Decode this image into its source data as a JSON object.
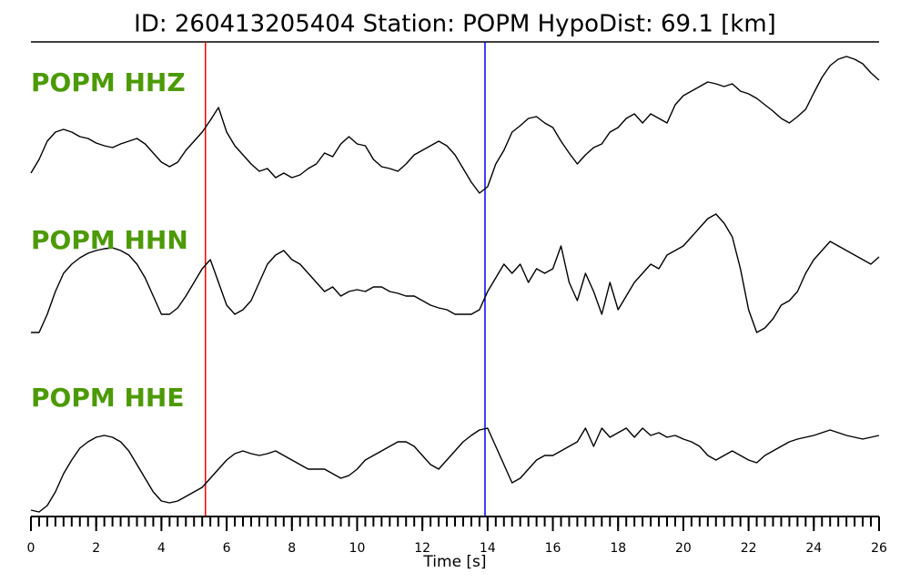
{
  "chart_data": {
    "type": "line",
    "title": "ID: 260413205404   Station: POPM   HypoDist:    69.1 [km]",
    "x_label": "Time [s]",
    "xlim": [
      0,
      26
    ],
    "xticks": [
      0,
      2,
      4,
      6,
      8,
      10,
      12,
      14,
      16,
      18,
      20,
      22,
      24,
      26
    ],
    "xminorticks": [
      0,
      0.25,
      0.5,
      0.75,
      1,
      1.25,
      1.5,
      1.75,
      2,
      2.25,
      2.5,
      2.75,
      3,
      3.25,
      3.5,
      3.75,
      4,
      4.25,
      4.5,
      4.75,
      5,
      5.25,
      5.5,
      5.75,
      6,
      6.25,
      6.5,
      6.75,
      7,
      7.25,
      7.5,
      7.75,
      8,
      8.25,
      8.5,
      8.75,
      9,
      9.25,
      9.5,
      9.75,
      10,
      10.25,
      10.5,
      10.75,
      11,
      11.25,
      11.5,
      11.75,
      12,
      12.25,
      12.5,
      12.75,
      13,
      13.25,
      13.5,
      13.75,
      14,
      14.25,
      14.5,
      14.75,
      15,
      15.25,
      15.5,
      15.75,
      16,
      16.25,
      16.5,
      16.75,
      17,
      17.25,
      17.5,
      17.75,
      18,
      18.25,
      18.5,
      18.75,
      19,
      19.25,
      19.5,
      19.75,
      20,
      20.25,
      20.5,
      20.75,
      21,
      21.25,
      21.5,
      21.75,
      22,
      22.25,
      22.5,
      22.75,
      23,
      23.25,
      23.5,
      23.75,
      24,
      24.25,
      24.5,
      24.75,
      25,
      25.25,
      25.5,
      25.75,
      26
    ],
    "ylim": [
      -100,
      100
    ],
    "label_color": "#4c9a06",
    "x": [
      0,
      0.25,
      0.5,
      0.75,
      1,
      1.25,
      1.5,
      1.75,
      2,
      2.25,
      2.5,
      2.75,
      3,
      3.25,
      3.5,
      3.75,
      4,
      4.25,
      4.5,
      4.75,
      5,
      5.25,
      5.5,
      5.75,
      6,
      6.25,
      6.5,
      6.75,
      7,
      7.25,
      7.5,
      7.75,
      8,
      8.25,
      8.5,
      8.75,
      9,
      9.25,
      9.5,
      9.75,
      10,
      10.25,
      10.5,
      10.75,
      11,
      11.25,
      11.5,
      11.75,
      12,
      12.25,
      12.5,
      12.75,
      13,
      13.25,
      13.5,
      13.75,
      14,
      14.25,
      14.5,
      14.75,
      15,
      15.25,
      15.5,
      15.75,
      16,
      16.25,
      16.5,
      16.75,
      17,
      17.25,
      17.5,
      17.75,
      18,
      18.25,
      18.5,
      18.75,
      19,
      19.25,
      19.5,
      19.75,
      20,
      20.25,
      20.5,
      20.75,
      21,
      21.25,
      21.5,
      21.75,
      22,
      22.25,
      22.5,
      22.75,
      23,
      23.25,
      23.5,
      23.75,
      24,
      24.25,
      24.5,
      24.75,
      25,
      25.25,
      25.5,
      25.75,
      26
    ],
    "series": [
      {
        "name": "POPM HHZ",
        "color": "#000000",
        "values": [
          -40,
          -25,
          -5,
          5,
          8,
          5,
          0,
          -2,
          -7,
          -10,
          -12,
          -8,
          -5,
          -2,
          -8,
          -18,
          -28,
          -33,
          -28,
          -15,
          -5,
          5,
          18,
          32,
          5,
          -10,
          -20,
          -30,
          -38,
          -35,
          -45,
          -40,
          -45,
          -42,
          -35,
          -30,
          -18,
          -22,
          -8,
          0,
          -8,
          -10,
          -25,
          -33,
          -35,
          -38,
          -30,
          -20,
          -15,
          -10,
          -5,
          -10,
          -20,
          -35,
          -50,
          -62,
          -55,
          -30,
          -15,
          5,
          12,
          20,
          22,
          15,
          10,
          -5,
          -18,
          -30,
          -20,
          -12,
          -8,
          5,
          10,
          20,
          25,
          15,
          25,
          20,
          15,
          35,
          45,
          50,
          55,
          60,
          58,
          55,
          58,
          50,
          47,
          42,
          35,
          28,
          20,
          15,
          22,
          30,
          48,
          65,
          78,
          85,
          88,
          85,
          80,
          70,
          62
        ]
      },
      {
        "name": "POPM HHN",
        "color": "#000000",
        "values": [
          -60,
          -60,
          -40,
          -15,
          5,
          15,
          22,
          27,
          30,
          32,
          33,
          30,
          25,
          15,
          0,
          -20,
          -40,
          -40,
          -33,
          -20,
          -5,
          10,
          20,
          -5,
          -30,
          -40,
          -35,
          -25,
          -5,
          15,
          25,
          30,
          20,
          15,
          5,
          -5,
          -15,
          -10,
          -20,
          -15,
          -13,
          -15,
          -10,
          -10,
          -15,
          -17,
          -20,
          -20,
          -25,
          -30,
          -33,
          -35,
          -40,
          -40,
          -40,
          -35,
          -15,
          0,
          15,
          5,
          15,
          -5,
          10,
          5,
          10,
          35,
          -5,
          -25,
          5,
          -15,
          -40,
          -5,
          -35,
          -20,
          -5,
          5,
          15,
          10,
          25,
          30,
          35,
          45,
          55,
          65,
          70,
          60,
          45,
          10,
          -35,
          -60,
          -55,
          -45,
          -30,
          -25,
          -15,
          5,
          20,
          30,
          40,
          35,
          30,
          25,
          20,
          15,
          23
        ]
      },
      {
        "name": "POPM HHE",
        "color": "#000000",
        "values": [
          -80,
          -82,
          -75,
          -60,
          -40,
          -25,
          -12,
          -5,
          0,
          2,
          0,
          -5,
          -15,
          -30,
          -45,
          -60,
          -70,
          -72,
          -70,
          -65,
          -60,
          -55,
          -45,
          -35,
          -25,
          -18,
          -15,
          -18,
          -20,
          -18,
          -15,
          -20,
          -25,
          -30,
          -35,
          -35,
          -35,
          -40,
          -45,
          -42,
          -35,
          -25,
          -20,
          -15,
          -10,
          -5,
          -5,
          -10,
          -20,
          -30,
          -35,
          -25,
          -15,
          -5,
          2,
          8,
          10,
          -10,
          -30,
          -50,
          -45,
          -35,
          -25,
          -20,
          -20,
          -15,
          -10,
          -5,
          10,
          -10,
          10,
          0,
          5,
          10,
          0,
          10,
          2,
          5,
          0,
          2,
          -2,
          -5,
          -10,
          -20,
          -25,
          -20,
          -15,
          -20,
          -25,
          -28,
          -20,
          -15,
          -10,
          -5,
          -2,
          0,
          2,
          5,
          8,
          5,
          2,
          0,
          -2,
          0,
          2
        ]
      }
    ],
    "markers": [
      {
        "x": 5.35,
        "color": "#ff0000"
      },
      {
        "x": 13.92,
        "color": "#0000ff"
      }
    ]
  }
}
